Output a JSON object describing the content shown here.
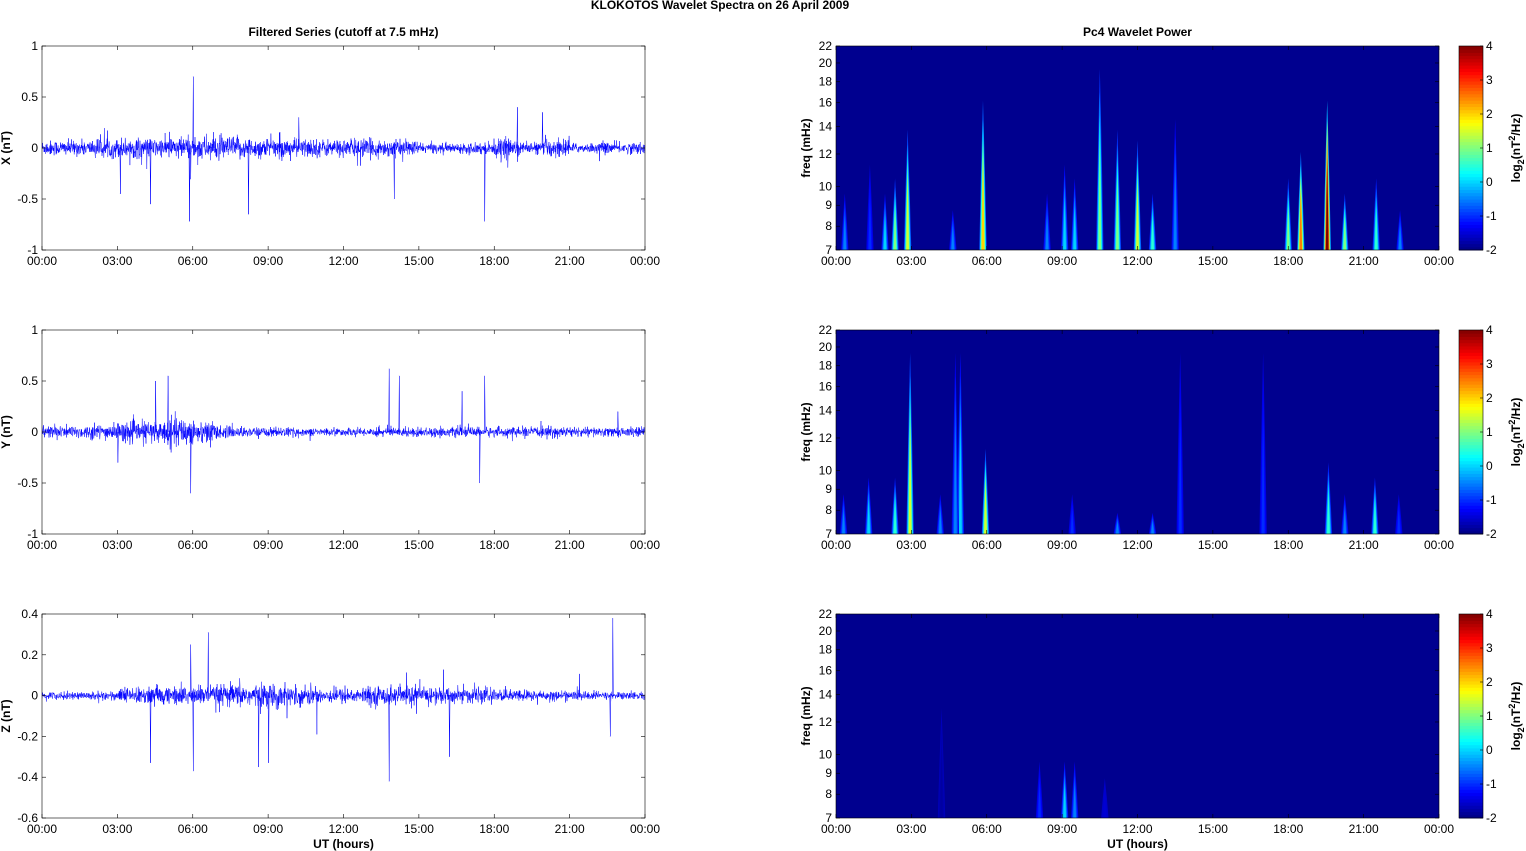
{
  "title": "KLOKOTOS Wavelet Spectra on 26 April     2009",
  "colors": {
    "series": "#0000ff",
    "background": "#00008f"
  },
  "chart_data": [
    {
      "type": "line",
      "panel": "X",
      "title": "Filtered Series (cutoff at 7.5 mHz)",
      "xlabel": "",
      "ylabel": "X (nT)",
      "xlim_hours": [
        0,
        24
      ],
      "xticks": [
        "00:00",
        "03:00",
        "06:00",
        "09:00",
        "12:00",
        "15:00",
        "18:00",
        "21:00",
        "00:00"
      ],
      "ylim": [
        -1,
        1
      ],
      "yticks": [
        -1,
        -0.5,
        0,
        0.5,
        1
      ],
      "ytick_labels": [
        "-1",
        "-0.5",
        "0",
        "0.5",
        "1"
      ],
      "hourly_amplitude": [
        0.08,
        0.08,
        0.1,
        0.11,
        0.1,
        0.12,
        0.13,
        0.12,
        0.11,
        0.1,
        0.1,
        0.09,
        0.1,
        0.09,
        0.08,
        0.05,
        0.05,
        0.06,
        0.1,
        0.06,
        0.1,
        0.05,
        0.06,
        0.06
      ],
      "spikes": [
        [
          6.0,
          0.7
        ],
        [
          5.85,
          -0.72
        ],
        [
          8.2,
          -0.65
        ],
        [
          17.6,
          -0.72
        ],
        [
          18.9,
          0.4
        ],
        [
          19.9,
          0.35
        ],
        [
          4.3,
          -0.55
        ],
        [
          14.0,
          -0.5
        ],
        [
          3.1,
          -0.45
        ],
        [
          10.2,
          0.3
        ]
      ]
    },
    {
      "type": "line",
      "panel": "Y",
      "title": "",
      "xlabel": "",
      "ylabel": "Y (nT)",
      "xlim_hours": [
        0,
        24
      ],
      "xticks": [
        "00:00",
        "03:00",
        "06:00",
        "09:00",
        "12:00",
        "15:00",
        "18:00",
        "21:00",
        "00:00"
      ],
      "ylim": [
        -1,
        1
      ],
      "yticks": [
        -1,
        -0.5,
        0,
        0.5,
        1
      ],
      "ytick_labels": [
        "-1",
        "-0.5",
        "0",
        "0.5",
        "1"
      ],
      "hourly_amplitude": [
        0.07,
        0.07,
        0.08,
        0.1,
        0.12,
        0.15,
        0.12,
        0.06,
        0.05,
        0.05,
        0.04,
        0.04,
        0.04,
        0.05,
        0.05,
        0.05,
        0.05,
        0.05,
        0.05,
        0.05,
        0.06,
        0.05,
        0.05,
        0.05
      ],
      "spikes": [
        [
          5.0,
          0.55
        ],
        [
          5.9,
          -0.6
        ],
        [
          13.8,
          0.62
        ],
        [
          17.4,
          -0.5
        ],
        [
          17.6,
          0.55
        ],
        [
          14.2,
          0.55
        ],
        [
          4.5,
          0.5
        ],
        [
          3.0,
          -0.3
        ],
        [
          16.7,
          0.4
        ],
        [
          22.9,
          0.2
        ]
      ]
    },
    {
      "type": "line",
      "panel": "Z",
      "title": "",
      "xlabel": "UT (hours)",
      "ylabel": "Z (nT)",
      "xlim_hours": [
        0,
        24
      ],
      "xticks": [
        "00:00",
        "03:00",
        "06:00",
        "09:00",
        "12:00",
        "15:00",
        "18:00",
        "21:00",
        "00:00"
      ],
      "ylim": [
        -0.6,
        0.4
      ],
      "yticks": [
        -0.6,
        -0.4,
        -0.2,
        0,
        0.2,
        0.4
      ],
      "ytick_labels": [
        "-0.6",
        "-0.4",
        "-0.2",
        "0",
        "0.2",
        "0.4"
      ],
      "hourly_amplitude": [
        0.02,
        0.02,
        0.025,
        0.04,
        0.05,
        0.05,
        0.05,
        0.06,
        0.06,
        0.06,
        0.05,
        0.04,
        0.04,
        0.05,
        0.05,
        0.05,
        0.04,
        0.04,
        0.03,
        0.03,
        0.025,
        0.025,
        0.02,
        0.02
      ],
      "spikes": [
        [
          6.6,
          0.31
        ],
        [
          5.9,
          0.25
        ],
        [
          22.7,
          0.38
        ],
        [
          22.6,
          -0.2
        ],
        [
          13.8,
          -0.42
        ],
        [
          4.3,
          -0.33
        ],
        [
          8.6,
          -0.35
        ],
        [
          6.0,
          -0.37
        ],
        [
          9.0,
          -0.33
        ],
        [
          16.2,
          -0.3
        ]
      ]
    },
    {
      "type": "heatmap",
      "panel": "X",
      "title": "Pc4 Wavelet Power",
      "xlabel": "",
      "ylabel": "freq (mHz)",
      "colorbar_label": "log2(nT^2/Hz)",
      "colorbar_ticks": [
        "-2",
        "-1",
        "0",
        "1",
        "2",
        "3",
        "4"
      ],
      "clim": [
        -2,
        4
      ],
      "ylim": [
        7,
        22
      ],
      "yscale": "log",
      "yticks": [
        7,
        8,
        9,
        10,
        12,
        14,
        16,
        18,
        20,
        22
      ],
      "xticks": [
        "00:00",
        "03:00",
        "06:00",
        "09:00",
        "12:00",
        "15:00",
        "18:00",
        "21:00",
        "00:00"
      ],
      "bursts_hour_topfreq_peakpower": [
        [
          0.35,
          10,
          -0.5
        ],
        [
          1.35,
          12,
          -1
        ],
        [
          1.95,
          10,
          0
        ],
        [
          2.35,
          11,
          1
        ],
        [
          2.85,
          15,
          1.5
        ],
        [
          4.65,
          9,
          -0.5
        ],
        [
          5.85,
          18,
          2
        ],
        [
          8.4,
          10,
          -0.5
        ],
        [
          9.1,
          12,
          0
        ],
        [
          9.5,
          11,
          0
        ],
        [
          10.5,
          22,
          1
        ],
        [
          11.2,
          15,
          1
        ],
        [
          12.0,
          14,
          1.5
        ],
        [
          12.6,
          10,
          0.5
        ],
        [
          13.5,
          16,
          -0.5
        ],
        [
          18.0,
          11,
          1
        ],
        [
          18.5,
          13,
          2.5
        ],
        [
          19.55,
          18,
          4
        ],
        [
          20.25,
          10,
          1
        ],
        [
          21.5,
          11,
          0.5
        ],
        [
          22.45,
          9,
          -0.5
        ]
      ]
    },
    {
      "type": "heatmap",
      "panel": "Y",
      "title": "",
      "xlabel": "",
      "ylabel": "freq (mHz)",
      "colorbar_label": "log2(nT^2/Hz)",
      "colorbar_ticks": [
        "-2",
        "-1",
        "0",
        "1",
        "2",
        "3",
        "4"
      ],
      "clim": [
        -2,
        4
      ],
      "ylim": [
        7,
        22
      ],
      "yscale": "log",
      "yticks": [
        7,
        8,
        9,
        10,
        12,
        14,
        16,
        18,
        20,
        22
      ],
      "xticks": [
        "00:00",
        "03:00",
        "06:00",
        "09:00",
        "12:00",
        "15:00",
        "18:00",
        "21:00",
        "00:00"
      ],
      "bursts_hour_topfreq_peakpower": [
        [
          0.3,
          9,
          -0.5
        ],
        [
          1.3,
          10,
          0
        ],
        [
          2.35,
          10,
          0.5
        ],
        [
          2.95,
          22,
          1.5
        ],
        [
          4.15,
          9,
          -0.5
        ],
        [
          4.95,
          22,
          0
        ],
        [
          5.95,
          12,
          1.5
        ],
        [
          4.75,
          22,
          -0.5
        ],
        [
          9.4,
          9,
          -1
        ],
        [
          11.2,
          8,
          -0.5
        ],
        [
          12.6,
          8,
          -0.5
        ],
        [
          13.7,
          22,
          -1
        ],
        [
          17.0,
          22,
          -1
        ],
        [
          19.6,
          11,
          0.5
        ],
        [
          20.25,
          9,
          -0.5
        ],
        [
          21.45,
          10,
          0.5
        ],
        [
          22.4,
          9,
          -1
        ]
      ]
    },
    {
      "type": "heatmap",
      "panel": "Z",
      "title": "",
      "xlabel": "UT (hours)",
      "ylabel": "freq (mHz)",
      "colorbar_label": "log2(nT^2/Hz)",
      "colorbar_ticks": [
        "-2",
        "-1",
        "0",
        "1",
        "2",
        "3",
        "4"
      ],
      "clim": [
        -2,
        4
      ],
      "ylim": [
        7,
        22
      ],
      "yscale": "log",
      "yticks": [
        7,
        8,
        9,
        10,
        12,
        14,
        16,
        18,
        20,
        22
      ],
      "xticks": [
        "00:00",
        "03:00",
        "06:00",
        "09:00",
        "12:00",
        "15:00",
        "18:00",
        "21:00",
        "00:00"
      ],
      "bursts_hour_topfreq_peakpower": [
        [
          8.1,
          10,
          -1
        ],
        [
          9.1,
          10,
          0
        ],
        [
          9.5,
          10,
          -0.5
        ],
        [
          10.7,
          9,
          -1.5
        ],
        [
          4.2,
          14,
          -1.8
        ]
      ]
    }
  ]
}
